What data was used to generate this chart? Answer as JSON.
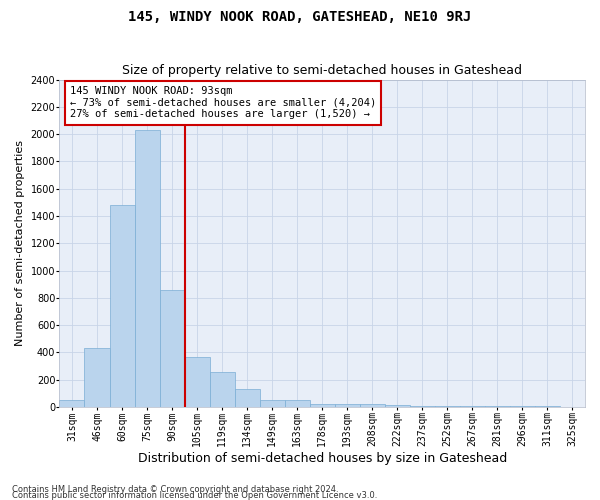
{
  "title": "145, WINDY NOOK ROAD, GATESHEAD, NE10 9RJ",
  "subtitle": "Size of property relative to semi-detached houses in Gateshead",
  "xlabel": "Distribution of semi-detached houses by size in Gateshead",
  "ylabel": "Number of semi-detached properties",
  "categories": [
    "31sqm",
    "46sqm",
    "60sqm",
    "75sqm",
    "90sqm",
    "105sqm",
    "119sqm",
    "134sqm",
    "149sqm",
    "163sqm",
    "178sqm",
    "193sqm",
    "208sqm",
    "222sqm",
    "237sqm",
    "252sqm",
    "267sqm",
    "281sqm",
    "296sqm",
    "311sqm",
    "325sqm"
  ],
  "values": [
    50,
    430,
    1480,
    2030,
    860,
    370,
    255,
    130,
    50,
    50,
    20,
    20,
    20,
    15,
    10,
    10,
    5,
    5,
    5,
    5,
    3
  ],
  "bar_color": "#bad4ed",
  "bar_edge_color": "#7aadd4",
  "vline_color": "#cc0000",
  "annotation_text": "145 WINDY NOOK ROAD: 93sqm\n← 73% of semi-detached houses are smaller (4,204)\n27% of semi-detached houses are larger (1,520) →",
  "annotation_box_color": "#ffffff",
  "annotation_box_edge": "#cc0000",
  "ylim": [
    0,
    2400
  ],
  "yticks": [
    0,
    200,
    400,
    600,
    800,
    1000,
    1200,
    1400,
    1600,
    1800,
    2000,
    2200,
    2400
  ],
  "footer1": "Contains HM Land Registry data © Crown copyright and database right 2024.",
  "footer2": "Contains public sector information licensed under the Open Government Licence v3.0.",
  "bg_color": "#ffffff",
  "plot_bg_color": "#e8eef8",
  "grid_color": "#c8d4e8",
  "title_fontsize": 10,
  "subtitle_fontsize": 9,
  "tick_fontsize": 7,
  "ylabel_fontsize": 8,
  "xlabel_fontsize": 9,
  "annotation_fontsize": 7.5,
  "footer_fontsize": 6
}
